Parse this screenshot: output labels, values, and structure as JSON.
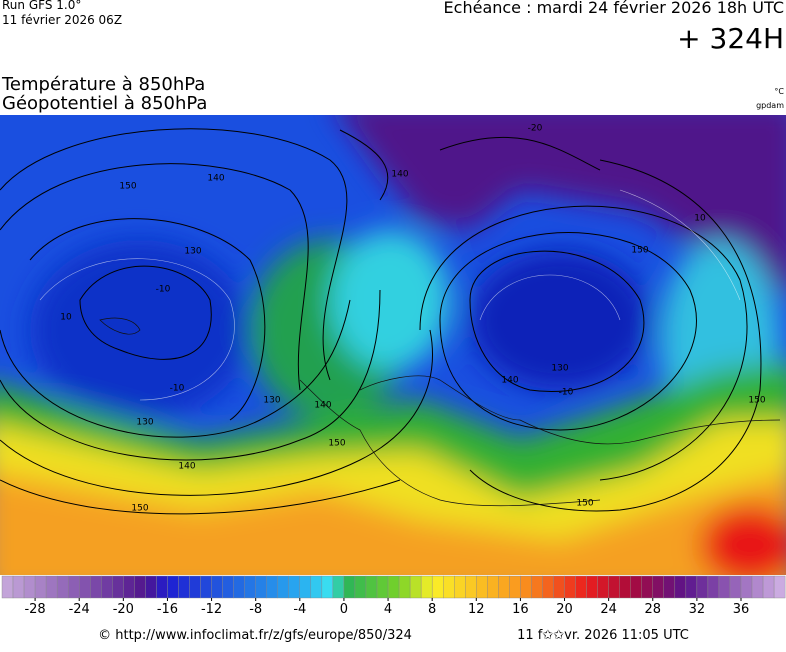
{
  "header": {
    "run": "Run GFS 1.0°",
    "run_date": "11 février 2026 06Z",
    "valid": "Echéance : mardi 24 février 2026 18h UTC",
    "lead": "+ 324H",
    "title_1": "Température à 850hPa",
    "title_2": "Géopotentiel à 850hPa",
    "unit_temp": "°C",
    "unit_geo": "gpdam"
  },
  "contour_labels": [
    "150",
    "140",
    "130",
    "-10",
    "-10",
    "130",
    "140",
    "150",
    "140",
    "150",
    "130",
    "-20",
    "140",
    "150",
    "10",
    "140",
    "130",
    "150",
    "150",
    "-10",
    "10"
  ],
  "colorbar": {
    "ticks": [
      -28,
      -24,
      -20,
      -16,
      -12,
      -8,
      -4,
      0,
      4,
      8,
      12,
      16,
      20,
      24,
      28,
      32,
      36
    ]
  },
  "footer": {
    "source": "© http://www.infoclimat.fr/z/gfs/europe/850/324",
    "generated": "11 f✩✩vr. 2026 11:05 UTC"
  }
}
